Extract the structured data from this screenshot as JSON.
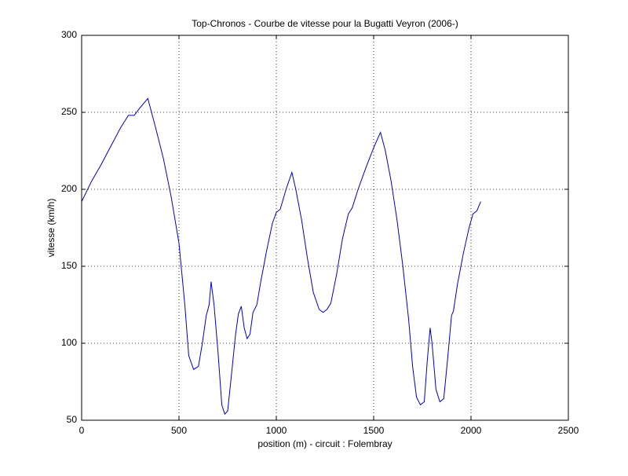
{
  "chart_data": {
    "type": "line",
    "title": "Top-Chronos - Courbe de vitesse pour la Bugatti Veyron (2006-)",
    "x_label": "position (m) - circuit : Folembray",
    "y_label": "vitesse (km/h)",
    "x": [
      0,
      50,
      100,
      150,
      200,
      240,
      270,
      300,
      340,
      380,
      420,
      460,
      500,
      530,
      550,
      575,
      600,
      620,
      640,
      655,
      665,
      680,
      700,
      720,
      735,
      750,
      770,
      790,
      805,
      820,
      835,
      850,
      865,
      880,
      900,
      920,
      950,
      980,
      1000,
      1020,
      1050,
      1080,
      1100,
      1130,
      1160,
      1190,
      1220,
      1240,
      1260,
      1280,
      1310,
      1340,
      1370,
      1390,
      1420,
      1460,
      1500,
      1535,
      1560,
      1590,
      1620,
      1650,
      1680,
      1700,
      1720,
      1740,
      1760,
      1775,
      1790,
      1800,
      1820,
      1840,
      1860,
      1880,
      1900,
      1910,
      1930,
      1960,
      1990,
      2010,
      2030,
      2050
    ],
    "series": [
      {
        "color": "#0000c8",
        "values": [
          192,
          205,
          216,
          228,
          240,
          248,
          248,
          253,
          259,
          240,
          220,
          195,
          165,
          125,
          92,
          83,
          85,
          100,
          118,
          125,
          140,
          125,
          95,
          60,
          54,
          56,
          80,
          105,
          119,
          124,
          110,
          103,
          106,
          120,
          125,
          140,
          160,
          178,
          185,
          187,
          200,
          211,
          200,
          180,
          155,
          133,
          122,
          120,
          122,
          126,
          145,
          168,
          184,
          188,
          200,
          214,
          227,
          237,
          225,
          205,
          180,
          150,
          115,
          85,
          65,
          60,
          62,
          88,
          110,
          100,
          70,
          62,
          64,
          90,
          118,
          121,
          138,
          158,
          175,
          184,
          186,
          192
        ]
      }
    ],
    "xlim": [
      0,
      2500
    ],
    "xticks": [
      0,
      500,
      1000,
      1500,
      2000,
      2500
    ],
    "ylim": [
      50,
      300
    ],
    "yticks": [
      50,
      100,
      150,
      200,
      250,
      300
    ],
    "grid": true
  }
}
